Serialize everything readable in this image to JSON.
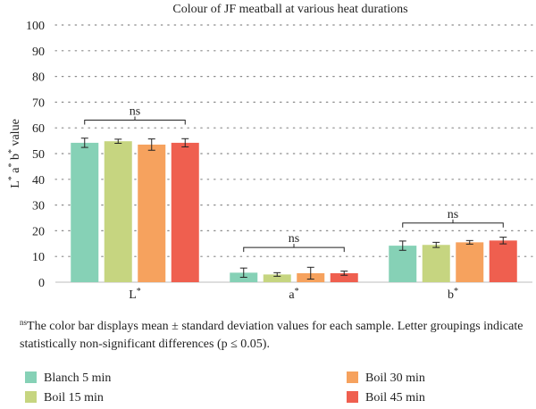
{
  "chart_data": {
    "type": "bar",
    "title": "Colour of JF meatball at various heat durations",
    "xlabel": "",
    "ylabel": "L* a* b* value",
    "ylim": [
      0,
      100
    ],
    "yticks": [
      0,
      10,
      20,
      30,
      40,
      50,
      60,
      70,
      80,
      90,
      100
    ],
    "grid": true,
    "grid_style": "dotted",
    "categories": [
      {
        "base": "L",
        "sup": "*"
      },
      {
        "base": "a",
        "sup": "*"
      },
      {
        "base": "b",
        "sup": "*"
      }
    ],
    "series": [
      {
        "name": "Blanch 5 min",
        "color": "#86d1b6",
        "values": [
          54.2,
          3.7,
          14.2
        ],
        "errors": [
          1.8,
          1.8,
          1.8
        ]
      },
      {
        "name": "Boil 15 min",
        "color": "#c6d580",
        "values": [
          54.8,
          3.0,
          14.5
        ],
        "errors": [
          0.8,
          0.7,
          1.0
        ]
      },
      {
        "name": "Boil 30 min",
        "color": "#f6a25e",
        "values": [
          53.5,
          3.5,
          15.5
        ],
        "errors": [
          2.2,
          2.3,
          0.7
        ]
      },
      {
        "name": "Boil 45 min",
        "color": "#ef5f4f",
        "values": [
          54.2,
          3.5,
          16.2
        ],
        "errors": [
          1.6,
          0.8,
          1.3
        ]
      }
    ],
    "annotations": [
      {
        "category_index": 0,
        "text": "ns",
        "bracket_y": 63
      },
      {
        "category_index": 1,
        "text": "ns",
        "bracket_y": 13.5
      },
      {
        "category_index": 2,
        "text": "ns",
        "bracket_y": 23
      }
    ],
    "legend_position": "bottom",
    "footnote": {
      "mark": "ns",
      "text": "The color bar displays mean ± standard deviation values for each sample. Letter groupings indicate statistically non-significant differences (p ≤ 0.05)."
    }
  }
}
